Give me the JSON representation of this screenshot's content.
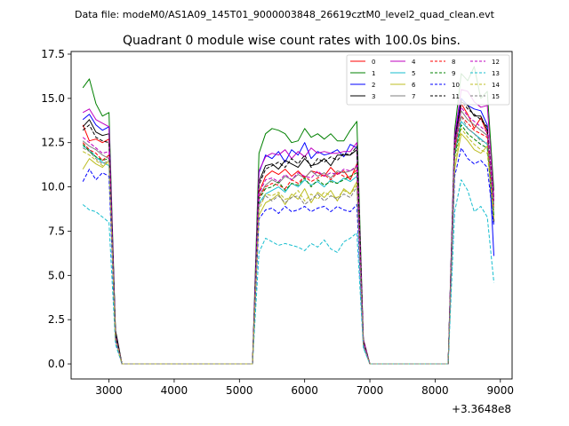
{
  "figure": {
    "header": "Data file: modeM0/AS1A09_145T01_9000003848_26619cztM0_level2_quad_clean.evt"
  },
  "chart_data": {
    "type": "line",
    "title": "Quadrant 0 module wise count rates with 100.0s bins.",
    "xlabel": "",
    "ylabel": "",
    "x_offset_label": "+3.3648e8",
    "xlim": [
      2420,
      9180
    ],
    "ylim": [
      -0.85,
      17.65
    ],
    "xticks": [
      3000,
      4000,
      5000,
      6000,
      7000,
      8000,
      9000
    ],
    "xtick_labels": [
      "3000",
      "4000",
      "5000",
      "6000",
      "7000",
      "8000",
      "9000"
    ],
    "yticks": [
      0,
      2.5,
      5,
      7.5,
      10,
      12.5,
      15,
      17.5
    ],
    "ytick_labels": [
      "0.0",
      "2.5",
      "5.0",
      "7.5",
      "10.0",
      "12.5",
      "15.0",
      "17.5"
    ],
    "grid": false,
    "legend_position": "top-right",
    "legend_columns": 4,
    "x": [
      2600,
      2700,
      2800,
      2900,
      3000,
      3100,
      3200,
      3300,
      3400,
      3500,
      3600,
      3700,
      3800,
      3900,
      4000,
      4100,
      4200,
      4300,
      4400,
      4500,
      4600,
      4700,
      4800,
      4900,
      5000,
      5100,
      5200,
      5300,
      5400,
      5500,
      5600,
      5700,
      5800,
      5900,
      6000,
      6100,
      6200,
      6300,
      6400,
      6500,
      6600,
      6700,
      6800,
      6900,
      7000,
      7100,
      7200,
      7300,
      7400,
      7500,
      7600,
      7700,
      7800,
      7900,
      8000,
      8100,
      8200,
      8300,
      8400,
      8500,
      8600,
      8700,
      8800,
      8900
    ],
    "series": [
      {
        "name": "0",
        "color": "#ff0000",
        "dash": "solid",
        "values": [
          13.5,
          12.6,
          12.7,
          12.5,
          12.7,
          1.5,
          0,
          0,
          0,
          0,
          0,
          0,
          0,
          0,
          0,
          0,
          0,
          0,
          0,
          0,
          0,
          0,
          0,
          0,
          0,
          0,
          0,
          9.7,
          10.6,
          10.9,
          10.7,
          11.0,
          10.6,
          10.9,
          10.5,
          10.9,
          10.8,
          10.6,
          11.1,
          10.7,
          10.9,
          10.4,
          11.3,
          1.2,
          0,
          0,
          0,
          0,
          0,
          0,
          0,
          0,
          0,
          0,
          0,
          0,
          0,
          12.0,
          14.7,
          14.1,
          13.3,
          13.9,
          13.0,
          8.2
        ]
      },
      {
        "name": "1",
        "color": "#008000",
        "dash": "solid",
        "values": [
          15.6,
          16.1,
          14.7,
          14.0,
          14.2,
          1.8,
          0,
          0,
          0,
          0,
          0,
          0,
          0,
          0,
          0,
          0,
          0,
          0,
          0,
          0,
          0,
          0,
          0,
          0,
          0,
          0,
          0,
          11.9,
          13.0,
          13.3,
          13.2,
          13.0,
          12.5,
          12.6,
          13.3,
          12.8,
          13.0,
          12.7,
          13.0,
          12.6,
          12.6,
          13.2,
          13.7,
          1.4,
          0,
          0,
          0,
          0,
          0,
          0,
          0,
          0,
          0,
          0,
          0,
          0,
          0,
          13.2,
          16.4,
          16.0,
          16.8,
          15.0,
          15.4,
          9.8
        ]
      },
      {
        "name": "2",
        "color": "#0000ff",
        "dash": "solid",
        "values": [
          13.8,
          14.1,
          13.5,
          13.2,
          13.4,
          1.7,
          0,
          0,
          0,
          0,
          0,
          0,
          0,
          0,
          0,
          0,
          0,
          0,
          0,
          0,
          0,
          0,
          0,
          0,
          0,
          0,
          0,
          10.8,
          11.8,
          11.6,
          12.0,
          11.4,
          12.1,
          11.8,
          12.5,
          11.6,
          12.0,
          11.8,
          11.9,
          12.1,
          11.7,
          12.4,
          12.2,
          1.3,
          0,
          0,
          0,
          0,
          0,
          0,
          0,
          0,
          0,
          0,
          0,
          0,
          0,
          12.8,
          15.0,
          14.6,
          14.4,
          14.3,
          13.5,
          6.1
        ]
      },
      {
        "name": "3",
        "color": "#000000",
        "dash": "solid",
        "values": [
          13.4,
          13.8,
          13.1,
          12.9,
          13.0,
          1.9,
          0,
          0,
          0,
          0,
          0,
          0,
          0,
          0,
          0,
          0,
          0,
          0,
          0,
          0,
          0,
          0,
          0,
          0,
          0,
          0,
          0,
          10.3,
          11.2,
          11.3,
          11.0,
          11.5,
          11.3,
          11.1,
          11.6,
          11.2,
          11.3,
          11.6,
          11.2,
          11.8,
          11.8,
          11.8,
          12.1,
          1.3,
          0,
          0,
          0,
          0,
          0,
          0,
          0,
          0,
          0,
          0,
          0,
          0,
          0,
          12.5,
          14.8,
          14.6,
          14.0,
          14.0,
          13.2,
          8.0
        ]
      },
      {
        "name": "4",
        "color": "#bf00bf",
        "dash": "solid",
        "values": [
          14.2,
          14.4,
          13.8,
          13.6,
          13.4,
          1.6,
          0,
          0,
          0,
          0,
          0,
          0,
          0,
          0,
          0,
          0,
          0,
          0,
          0,
          0,
          0,
          0,
          0,
          0,
          0,
          0,
          0,
          10.9,
          11.7,
          11.9,
          11.8,
          12.1,
          11.6,
          12.0,
          11.7,
          12.2,
          11.9,
          12.0,
          11.9,
          11.9,
          12.0,
          12.0,
          12.5,
          1.4,
          0,
          0,
          0,
          0,
          0,
          0,
          0,
          0,
          0,
          0,
          0,
          0,
          0,
          12.9,
          15.5,
          15.4,
          14.8,
          14.5,
          14.6,
          9.4
        ]
      },
      {
        "name": "5",
        "color": "#17becf",
        "dash": "solid",
        "values": [
          12.3,
          12.1,
          11.7,
          11.4,
          11.2,
          1.4,
          0,
          0,
          0,
          0,
          0,
          0,
          0,
          0,
          0,
          0,
          0,
          0,
          0,
          0,
          0,
          0,
          0,
          0,
          0,
          0,
          0,
          9.1,
          9.6,
          9.8,
          10.0,
          9.7,
          10.2,
          10.0,
          10.4,
          10.1,
          10.3,
          10.0,
          10.4,
          10.2,
          10.5,
          10.3,
          10.6,
          1.2,
          0,
          0,
          0,
          0,
          0,
          0,
          0,
          0,
          0,
          0,
          0,
          0,
          0,
          11.8,
          13.7,
          13.3,
          13.0,
          12.7,
          12.4,
          8.5
        ]
      },
      {
        "name": "6",
        "color": "#bcbd22",
        "dash": "solid",
        "values": [
          11.0,
          11.6,
          11.3,
          11.1,
          11.5,
          1.5,
          0,
          0,
          0,
          0,
          0,
          0,
          0,
          0,
          0,
          0,
          0,
          0,
          0,
          0,
          0,
          0,
          0,
          0,
          0,
          0,
          0,
          8.4,
          9.1,
          9.3,
          9.6,
          9.0,
          9.6,
          9.3,
          9.9,
          9.1,
          9.7,
          9.4,
          9.8,
          9.2,
          9.9,
          9.6,
          10.3,
          1.1,
          0,
          0,
          0,
          0,
          0,
          0,
          0,
          0,
          0,
          0,
          0,
          0,
          0,
          11.0,
          13.0,
          12.6,
          12.1,
          11.9,
          12.3,
          8.3
        ]
      },
      {
        "name": "7",
        "color": "#7f7f7f",
        "dash": "solid",
        "values": [
          12.6,
          12.3,
          12.1,
          11.8,
          11.6,
          1.5,
          0,
          0,
          0,
          0,
          0,
          0,
          0,
          0,
          0,
          0,
          0,
          0,
          0,
          0,
          0,
          0,
          0,
          0,
          0,
          0,
          0,
          9.5,
          10.1,
          10.4,
          10.2,
          10.6,
          10.4,
          10.7,
          10.5,
          10.9,
          10.6,
          10.8,
          10.5,
          10.9,
          10.8,
          10.9,
          11.1,
          1.2,
          0,
          0,
          0,
          0,
          0,
          0,
          0,
          0,
          0,
          0,
          0,
          0,
          0,
          12.3,
          14.3,
          13.8,
          13.5,
          13.2,
          12.9,
          9.0
        ]
      },
      {
        "name": "8",
        "color": "#ff0000",
        "dash": "dashed",
        "values": [
          12.5,
          12.1,
          11.9,
          11.5,
          11.8,
          1.4,
          0,
          0,
          0,
          0,
          0,
          0,
          0,
          0,
          0,
          0,
          0,
          0,
          0,
          0,
          0,
          0,
          0,
          0,
          0,
          0,
          0,
          9.4,
          10.0,
          10.2,
          10.1,
          9.9,
          10.4,
          10.2,
          10.6,
          10.3,
          10.5,
          10.7,
          10.4,
          10.8,
          10.6,
          10.5,
          11.0,
          1.2,
          0,
          0,
          0,
          0,
          0,
          0,
          0,
          0,
          0,
          0,
          0,
          0,
          0,
          12.1,
          14.0,
          13.6,
          13.2,
          13.0,
          12.8,
          8.7
        ]
      },
      {
        "name": "9",
        "color": "#008000",
        "dash": "dashed",
        "values": [
          12.4,
          12.0,
          11.7,
          11.5,
          11.6,
          1.4,
          0,
          0,
          0,
          0,
          0,
          0,
          0,
          0,
          0,
          0,
          0,
          0,
          0,
          0,
          0,
          0,
          0,
          0,
          0,
          0,
          0,
          9.3,
          9.9,
          10.0,
          10.3,
          9.8,
          10.2,
          10.1,
          10.5,
          10.0,
          10.4,
          10.1,
          10.3,
          10.2,
          10.4,
          10.6,
          10.8,
          1.2,
          0,
          0,
          0,
          0,
          0,
          0,
          0,
          0,
          0,
          0,
          0,
          0,
          0,
          11.7,
          13.5,
          13.0,
          12.7,
          12.4,
          12.2,
          8.4
        ]
      },
      {
        "name": "10",
        "color": "#0000ff",
        "dash": "dashed",
        "values": [
          10.3,
          11.0,
          10.4,
          10.8,
          10.6,
          1.3,
          0,
          0,
          0,
          0,
          0,
          0,
          0,
          0,
          0,
          0,
          0,
          0,
          0,
          0,
          0,
          0,
          0,
          0,
          0,
          0,
          0,
          8.2,
          8.7,
          8.8,
          8.5,
          8.9,
          8.6,
          8.7,
          8.9,
          8.6,
          8.8,
          8.9,
          8.6,
          8.9,
          8.7,
          8.6,
          9.0,
          1.0,
          0,
          0,
          0,
          0,
          0,
          0,
          0,
          0,
          0,
          0,
          0,
          0,
          0,
          10.6,
          12.2,
          11.6,
          11.3,
          11.5,
          11.1,
          7.8
        ]
      },
      {
        "name": "11",
        "color": "#000000",
        "dash": "dashed",
        "values": [
          13.2,
          13.5,
          12.8,
          12.6,
          12.5,
          1.6,
          0,
          0,
          0,
          0,
          0,
          0,
          0,
          0,
          0,
          0,
          0,
          0,
          0,
          0,
          0,
          0,
          0,
          0,
          0,
          0,
          0,
          10.1,
          11.0,
          11.2,
          11.4,
          11.1,
          11.6,
          11.3,
          11.8,
          11.1,
          11.6,
          11.4,
          11.7,
          11.5,
          11.9,
          11.8,
          12.3,
          1.3,
          0,
          0,
          0,
          0,
          0,
          0,
          0,
          0,
          0,
          0,
          0,
          0,
          0,
          12.6,
          14.9,
          14.4,
          14.1,
          13.8,
          13.4,
          9.2
        ]
      },
      {
        "name": "12",
        "color": "#bf00bf",
        "dash": "dashed",
        "values": [
          12.8,
          12.5,
          12.2,
          11.9,
          12.0,
          1.5,
          0,
          0,
          0,
          0,
          0,
          0,
          0,
          0,
          0,
          0,
          0,
          0,
          0,
          0,
          0,
          0,
          0,
          0,
          0,
          0,
          0,
          9.6,
          10.4,
          10.5,
          10.3,
          10.7,
          10.4,
          10.8,
          10.6,
          10.5,
          10.9,
          10.6,
          10.8,
          10.7,
          11.0,
          10.9,
          11.2,
          1.2,
          0,
          0,
          0,
          0,
          0,
          0,
          0,
          0,
          0,
          0,
          0,
          0,
          0,
          12.4,
          14.5,
          14.0,
          13.7,
          13.4,
          13.1,
          9.1
        ]
      },
      {
        "name": "13",
        "color": "#17becf",
        "dash": "dashed",
        "values": [
          9.0,
          8.7,
          8.6,
          8.3,
          8.0,
          1.1,
          0,
          0,
          0,
          0,
          0,
          0,
          0,
          0,
          0,
          0,
          0,
          0,
          0,
          0,
          0,
          0,
          0,
          0,
          0,
          0,
          0,
          6.3,
          7.1,
          6.9,
          6.7,
          6.8,
          6.7,
          6.6,
          6.4,
          6.8,
          6.6,
          7.0,
          6.5,
          6.3,
          6.9,
          7.1,
          7.4,
          0.9,
          0,
          0,
          0,
          0,
          0,
          0,
          0,
          0,
          0,
          0,
          0,
          0,
          0,
          8.6,
          10.4,
          9.8,
          8.6,
          8.9,
          8.3,
          4.6
        ]
      },
      {
        "name": "14",
        "color": "#bcbd22",
        "dash": "dashed",
        "values": [
          12.0,
          11.8,
          11.5,
          11.2,
          11.4,
          1.4,
          0,
          0,
          0,
          0,
          0,
          0,
          0,
          0,
          0,
          0,
          0,
          0,
          0,
          0,
          0,
          0,
          0,
          0,
          0,
          0,
          0,
          8.7,
          9.6,
          9.5,
          9.7,
          9.3,
          9.4,
          9.8,
          9.2,
          9.6,
          9.3,
          9.7,
          9.5,
          9.4,
          9.8,
          9.6,
          10.1,
          1.1,
          0,
          0,
          0,
          0,
          0,
          0,
          0,
          0,
          0,
          0,
          0,
          0,
          0,
          11.4,
          13.3,
          12.8,
          12.4,
          12.1,
          11.9,
          8.2
        ]
      },
      {
        "name": "15",
        "color": "#7f7f7f",
        "dash": "dashed",
        "values": [
          12.2,
          12.0,
          11.6,
          11.3,
          11.5,
          1.4,
          0,
          0,
          0,
          0,
          0,
          0,
          0,
          0,
          0,
          0,
          0,
          0,
          0,
          0,
          0,
          0,
          0,
          0,
          0,
          0,
          0,
          9.0,
          9.5,
          9.2,
          9.5,
          9.1,
          9.4,
          9.5,
          9.0,
          9.3,
          9.6,
          9.2,
          9.5,
          9.3,
          9.6,
          9.4,
          10.0,
          1.1,
          0,
          0,
          0,
          0,
          0,
          0,
          0,
          0,
          0,
          0,
          0,
          0,
          0,
          11.9,
          14.0,
          13.3,
          13.0,
          12.6,
          12.5,
          8.8
        ]
      }
    ]
  }
}
